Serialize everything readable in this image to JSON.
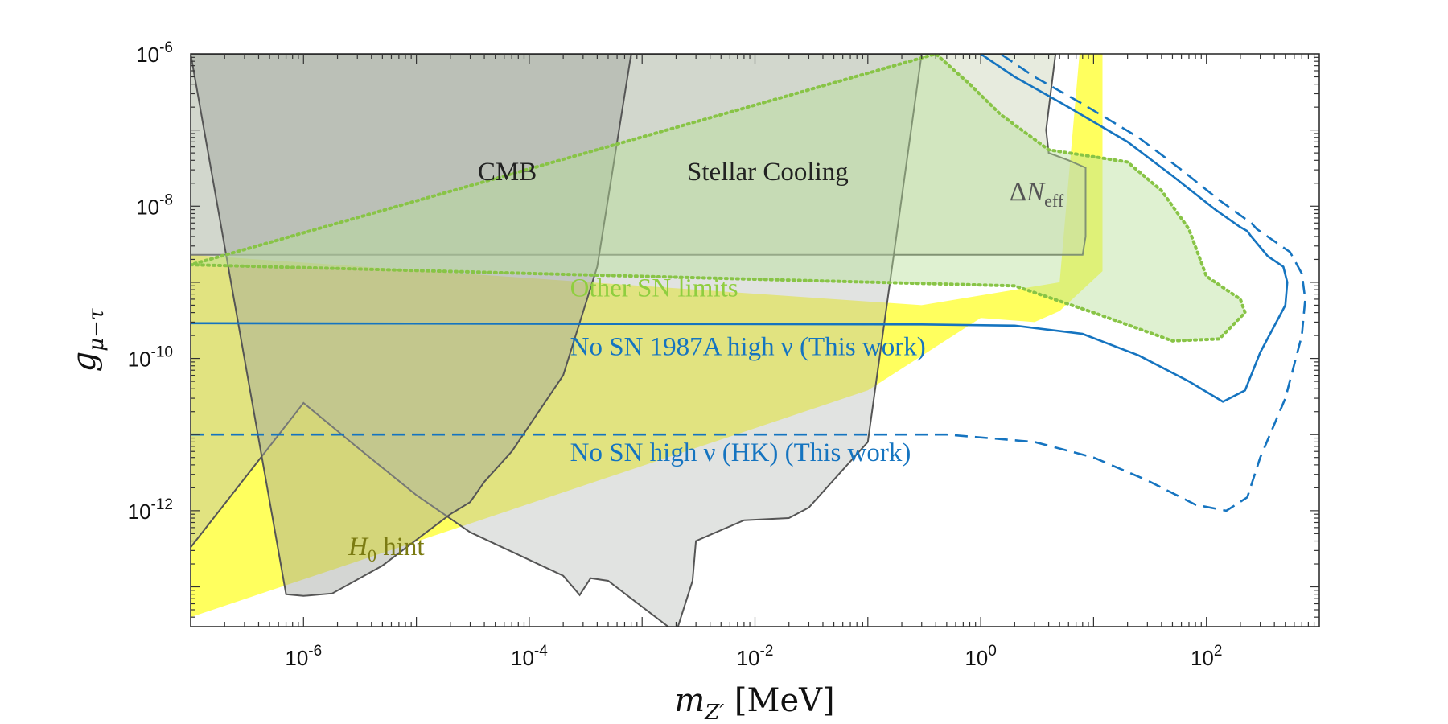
{
  "chart_data": {
    "type": "area",
    "xscale": "log",
    "yscale": "log",
    "xlim": [
      1e-07,
      1000
    ],
    "ylim": [
      3e-14,
      1e-06
    ],
    "grid": false,
    "xlabel": "m_{Z'} [MeV]",
    "ylabel": "g_{μ−τ}",
    "x_tick_labels": [
      {
        "value": 1e-06,
        "base": "10",
        "exp": "-6"
      },
      {
        "value": 0.0001,
        "base": "10",
        "exp": "-4"
      },
      {
        "value": 0.01,
        "base": "10",
        "exp": "-2"
      },
      {
        "value": 1,
        "base": "10",
        "exp": "0"
      },
      {
        "value": 100,
        "base": "10",
        "exp": "2"
      }
    ],
    "y_tick_labels": [
      {
        "value": 1e-06,
        "base": "10",
        "exp": "-6"
      },
      {
        "value": 1e-08,
        "base": "10",
        "exp": "-8"
      },
      {
        "value": 1e-10,
        "base": "10",
        "exp": "-10"
      },
      {
        "value": 1e-12,
        "base": "10",
        "exp": "-12"
      }
    ],
    "regions": [
      {
        "name": "H_0 hint",
        "kind": "band",
        "color": "#ffff55",
        "opacity": 0.95,
        "points": [
          [
            1e-07,
            4e-14
          ],
          [
            0.1,
            3.8e-11
          ],
          [
            1,
            3.4e-10
          ],
          [
            3,
            3e-10
          ],
          [
            5,
            4.2e-10
          ],
          [
            12,
            1.4e-09
          ],
          [
            12,
            1e-06
          ],
          [
            7.5,
            1e-06
          ],
          [
            5,
            1e-09
          ],
          [
            0.3,
            5e-10
          ],
          [
            1e-07,
            2.3e-09
          ]
        ]
      },
      {
        "name": "ΔN_eff",
        "kind": "excluded",
        "color": "#d3dbc3",
        "opacity": 0.55,
        "stroke": "#555555",
        "points": [
          [
            1e-07,
            2.3e-09
          ],
          [
            8,
            2.3e-09
          ],
          [
            8.5,
            4e-09
          ],
          [
            8.5,
            3.2e-08
          ],
          [
            6,
            4e-08
          ],
          [
            4,
            5e-08
          ],
          [
            3.8,
            1e-07
          ],
          [
            4.6,
            1e-06
          ],
          [
            1e-07,
            1e-06
          ]
        ]
      },
      {
        "name": "Stellar Cooling",
        "kind": "excluded",
        "color": "#b5b8b3",
        "opacity": 0.4,
        "stroke": "#555555",
        "points": [
          [
            1e-07,
            3.3e-13
          ],
          [
            1e-06,
            2.6e-11
          ],
          [
            3e-06,
            6.8e-12
          ],
          [
            1e-05,
            1.6e-12
          ],
          [
            3e-05,
            5.2e-13
          ],
          [
            0.0002,
            1.4e-13
          ],
          [
            0.00028,
            7.8e-14
          ],
          [
            0.00035,
            1.3e-13
          ],
          [
            0.0005,
            1.2e-13
          ],
          [
            0.002,
            2.5e-14
          ],
          [
            0.0028,
            1.2e-13
          ],
          [
            0.003,
            4e-13
          ],
          [
            0.008,
            7.5e-13
          ],
          [
            0.02,
            8e-13
          ],
          [
            0.03,
            1.1e-12
          ],
          [
            0.1,
            8e-12
          ],
          [
            0.3,
            1e-06
          ],
          [
            1e-07,
            1e-06
          ]
        ]
      },
      {
        "name": "CMB",
        "kind": "excluded",
        "color": "#a0a39e",
        "opacity": 0.45,
        "stroke": "#555555",
        "points": [
          [
            7e-07,
            8e-14
          ],
          [
            1e-06,
            7.6e-14
          ],
          [
            1.8e-06,
            8.2e-14
          ],
          [
            5e-06,
            1.9e-13
          ],
          [
            2e-05,
            9e-13
          ],
          [
            3e-05,
            1.3e-12
          ],
          [
            4e-05,
            2.4e-12
          ],
          [
            7e-05,
            6e-12
          ],
          [
            0.0002,
            6e-11
          ],
          [
            0.0004,
            1.6e-09
          ],
          [
            0.0008,
            1e-06
          ],
          [
            1e-07,
            1e-06
          ]
        ]
      },
      {
        "name": "Other SN limits",
        "kind": "excluded",
        "color": "#b9e19a",
        "opacity": 0.45,
        "stroke": "#88c446",
        "dash": "dotted",
        "points": [
          [
            1e-07,
            1.7e-09
          ],
          [
            2,
            9e-10
          ],
          [
            10,
            4e-10
          ],
          [
            50,
            1.7e-10
          ],
          [
            130,
            1.8e-10
          ],
          [
            220,
            4e-10
          ],
          [
            200,
            6e-10
          ],
          [
            100,
            1.2e-09
          ],
          [
            70,
            5e-09
          ],
          [
            40,
            1.6e-08
          ],
          [
            20,
            3.8e-08
          ],
          [
            4,
            5.5e-08
          ],
          [
            1.5,
            1.6e-07
          ],
          [
            0.8,
            4e-07
          ],
          [
            0.4,
            1e-06
          ]
        ]
      }
    ],
    "series": [
      {
        "name": "No SN 1987A high ν (This work)",
        "color": "#1574c0",
        "dash": "solid",
        "x": [
          1e-07,
          0.3,
          2,
          8,
          25,
          70,
          140,
          220,
          300,
          500,
          520,
          480,
          350,
          250,
          230,
          200,
          120,
          50,
          20,
          6,
          2,
          1
        ],
        "y": [
          2.9e-10,
          2.8e-10,
          2.7e-10,
          2.1e-10,
          1.1e-10,
          5e-11,
          2.7e-11,
          3.8e-11,
          1.2e-10,
          5e-10,
          1e-09,
          1.6e-09,
          2.2e-09,
          4e-09,
          4.7e-09,
          5.3e-09,
          9e-09,
          2.5e-08,
          7e-08,
          2e-07,
          5e-07,
          1e-06
        ]
      },
      {
        "name": "No SN high ν (HK) (This work)",
        "color": "#1574c0",
        "dash": "dashed",
        "x": [
          1e-07,
          0.5,
          3,
          10,
          30,
          80,
          150,
          230,
          300,
          500,
          700,
          750,
          700,
          550,
          280,
          250,
          130,
          60,
          25,
          8,
          3,
          1.5
        ],
        "y": [
          1e-11,
          1e-11,
          8e-12,
          5e-12,
          2.5e-12,
          1.2e-12,
          1e-12,
          1.5e-12,
          5e-12,
          3e-11,
          2e-10,
          6e-10,
          1.3e-09,
          2.5e-09,
          5e-09,
          6e-09,
          1.2e-08,
          3e-08,
          8e-08,
          2.2e-07,
          5e-07,
          1e-06
        ]
      }
    ],
    "annotations": [
      {
        "id": "cmb",
        "text": "CMB",
        "x": 3.5e-05,
        "y": 2.2e-08,
        "color": "#222222"
      },
      {
        "id": "stellar",
        "text": "Stellar Cooling",
        "x": 0.0025,
        "y": 2.2e-08,
        "color": "#222222"
      },
      {
        "id": "neff",
        "text": "ΔN",
        "sub": "eff",
        "x": 1.8,
        "y": 1.2e-08,
        "color": "#555555"
      },
      {
        "id": "othersn",
        "text": "Other SN limits",
        "x": 0.00023,
        "y": 6.5e-10,
        "color": "#8fce3f"
      },
      {
        "id": "sn1987",
        "text": "No SN 1987A high ν (This work)",
        "x": 0.00023,
        "y": 1.1e-10,
        "color": "#1574c0"
      },
      {
        "id": "snhk",
        "text": "No SN high ν (HK) (This work)",
        "x": 0.00023,
        "y": 4.5e-12,
        "color": "#1574c0"
      },
      {
        "id": "h0",
        "text": "H",
        "sub": "0",
        "tail": " hint",
        "x": 2.5e-06,
        "y": 2.6e-13,
        "color": "#7b7b12"
      }
    ]
  }
}
